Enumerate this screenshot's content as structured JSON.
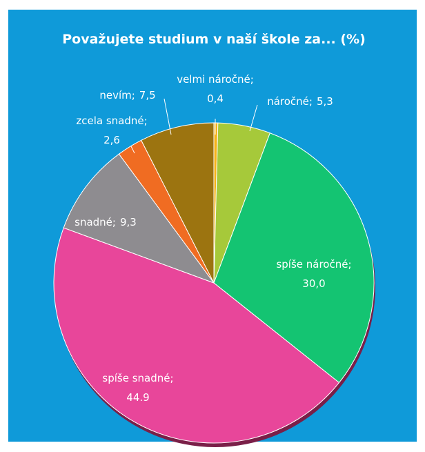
{
  "chart_data": {
    "type": "pie",
    "title": "Považujete studium v naší škole za... (%)",
    "categories": [
      "velmi náročné",
      "náročné",
      "spíše náročné",
      "spíše snadné",
      "snadné",
      "zcela snadné",
      "nevím"
    ],
    "values": [
      0.4,
      5.3,
      30.0,
      44.9,
      9.3,
      2.6,
      7.5
    ],
    "value_labels": [
      "0,4",
      "5,3",
      "30,0",
      "44.9",
      "9,3",
      "2,6",
      "7,5"
    ],
    "label_separator": ";",
    "colors": [
      "#f5b21a",
      "#a6c93a",
      "#14c472",
      "#e8469a",
      "#8e8c90",
      "#f06c22",
      "#9c7410"
    ]
  }
}
